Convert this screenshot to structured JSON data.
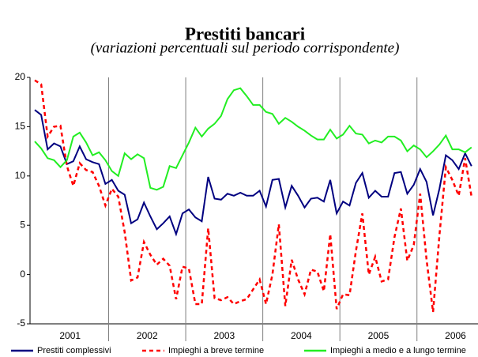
{
  "chart_data": {
    "type": "line",
    "title": "Prestiti bancari",
    "subtitle": "(variazioni percentuali sul periodo corrispondente)",
    "categories": [
      null,
      null,
      null,
      null,
      null,
      "2001",
      null,
      null,
      null,
      null,
      null,
      null,
      null,
      null,
      null,
      null,
      null,
      "2002",
      null,
      null,
      null,
      null,
      null,
      null,
      null,
      null,
      null,
      null,
      null,
      "2003",
      null,
      null,
      null,
      null,
      null,
      null,
      null,
      null,
      null,
      null,
      null,
      "2004",
      null,
      null,
      null,
      null,
      null,
      null,
      null,
      null,
      null,
      null,
      null,
      "2005",
      null,
      null,
      null,
      null,
      null,
      null,
      null,
      null,
      null,
      null,
      null,
      "2006",
      null,
      null,
      null
    ],
    "ylim": [
      -5,
      20
    ],
    "yticks": [
      -5,
      0,
      5,
      10,
      15,
      20
    ],
    "series": [
      {
        "name": "Prestiti complessivi",
        "color": "#000080",
        "dash": false,
        "values": [
          16.7,
          16.2,
          12.7,
          13.3,
          13.0,
          11.2,
          11.5,
          13.0,
          11.7,
          11.4,
          11.2,
          9.2,
          9.6,
          8.5,
          8.1,
          5.2,
          5.6,
          7.3,
          5.9,
          4.6,
          5.2,
          5.9,
          4.1,
          6.2,
          6.6,
          5.8,
          5.4,
          9.9,
          7.7,
          7.6,
          8.2,
          8.0,
          8.3,
          8.0,
          8.0,
          8.5,
          6.9,
          9.6,
          9.7,
          6.8,
          9.0,
          8.0,
          6.8,
          7.7,
          7.8,
          7.4,
          9.6,
          6.2,
          7.4,
          7.0,
          9.3,
          10.3,
          7.8,
          8.5,
          7.9,
          7.9,
          10.3,
          10.4,
          8.2,
          9.1,
          10.7,
          9.4,
          6.0,
          8.7,
          12.1,
          11.6,
          10.7,
          12.3,
          11.0
        ]
      },
      {
        "name": "Impieghi a breve termine",
        "color": "#ff0000",
        "dash": true,
        "values": [
          19.7,
          19.3,
          14.0,
          15.0,
          15.1,
          11.0,
          9.0,
          11.3,
          10.6,
          10.4,
          9.0,
          7.0,
          8.7,
          7.9,
          4.3,
          -0.6,
          -0.3,
          3.3,
          2.0,
          1.0,
          1.6,
          0.9,
          -2.5,
          0.8,
          0.6,
          -3.0,
          -3.0,
          4.7,
          -2.4,
          -2.6,
          -2.3,
          -3.0,
          -2.7,
          -2.5,
          -1.5,
          -0.5,
          -3.0,
          0.0,
          5.1,
          -3.2,
          1.5,
          -0.5,
          -2.0,
          0.5,
          0.3,
          -1.7,
          4.1,
          -3.5,
          -2.0,
          -2.1,
          2.4,
          6.2,
          0.0,
          1.8,
          -0.7,
          -0.5,
          3.8,
          6.7,
          1.4,
          3.0,
          8.2,
          1.5,
          -3.8,
          4.0,
          10.9,
          9.6,
          8.0,
          11.8,
          7.9
        ]
      },
      {
        "name": "Impieghi a medio e a lungo termine",
        "color": "#22ee22",
        "dash": false,
        "values": [
          13.5,
          12.8,
          11.8,
          11.6,
          10.9,
          11.6,
          14.0,
          14.4,
          13.4,
          12.1,
          12.4,
          11.6,
          10.5,
          10.0,
          12.3,
          11.7,
          12.2,
          11.8,
          8.8,
          8.6,
          8.9,
          11.0,
          10.8,
          12.1,
          13.4,
          14.9,
          14.0,
          14.8,
          15.3,
          16.1,
          17.8,
          18.7,
          18.9,
          18.1,
          17.2,
          17.2,
          16.5,
          16.3,
          15.3,
          15.9,
          15.5,
          15.0,
          14.6,
          14.1,
          13.7,
          13.7,
          14.7,
          13.8,
          14.2,
          15.1,
          14.3,
          14.2,
          13.3,
          13.6,
          13.4,
          14.0,
          14.0,
          13.6,
          12.5,
          13.1,
          12.7,
          11.9,
          12.5,
          13.2,
          14.1,
          12.7,
          12.7,
          12.4,
          12.9
        ]
      }
    ]
  }
}
